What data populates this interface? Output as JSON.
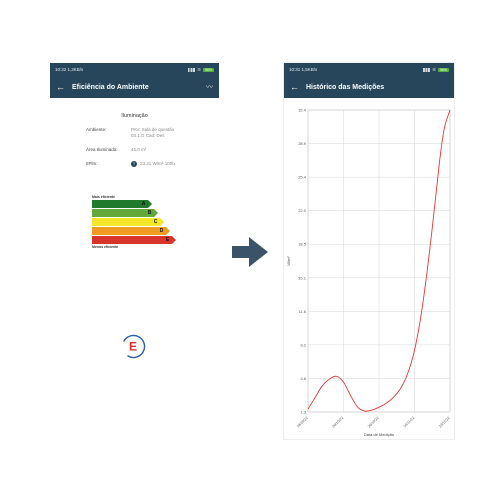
{
  "left_screen": {
    "status": {
      "time": "10:32",
      "left_extra": "1,3KB/s",
      "battery": "96%"
    },
    "appbar": {
      "title": "Eficiência do Ambiente"
    },
    "section_title": "Iluminação",
    "fields": [
      {
        "label": "Ambiente:",
        "value": "PAV: Sala de questão 03.1.G Cad: Des"
      },
      {
        "label": "Área Iluminada:",
        "value": "45.0 m²"
      },
      {
        "label": "IIPlm:",
        "value": "23.31 W/m²·100lx"
      }
    ],
    "efficiency": {
      "top_caption": "Mais eficiente",
      "bottom_caption": "Menos eficiente",
      "levels": [
        {
          "letter": "A",
          "color": "#1f7a2d"
        },
        {
          "letter": "B",
          "color": "#62a83a"
        },
        {
          "letter": "C",
          "color": "#f5e62a"
        },
        {
          "letter": "D",
          "color": "#f09a22"
        },
        {
          "letter": "E",
          "color": "#d9342b"
        }
      ]
    },
    "grade": {
      "letter": "E",
      "color": "#d9342b",
      "ring_color": "#2a5ea8"
    }
  },
  "right_screen": {
    "status": {
      "time": "10:31",
      "left_extra": "1,5KB/s",
      "battery": "96%"
    },
    "appbar": {
      "title": "Histórico das Medições"
    },
    "chart_data": {
      "type": "line",
      "xlabel": "Data de Medição",
      "ylabel": "W/m²",
      "ylim": [
        1.1,
        32.4
      ],
      "yticks": [
        "32.4",
        "28.9",
        "25.4",
        "22.0",
        "18.5",
        "15.1",
        "11.6",
        "8.2",
        "4.8",
        "1.3"
      ],
      "xticks": [
        "19/10/22",
        "20/10/22",
        "20/10/22",
        "16/11/22",
        "23/11/22"
      ],
      "series": [
        {
          "color": "#e53935",
          "x": [
            0,
            0.05,
            0.1,
            0.15,
            0.2,
            0.25,
            0.3,
            0.35,
            0.4,
            0.45,
            0.5,
            0.55,
            0.6,
            0.65,
            0.7,
            0.75,
            0.8,
            0.85,
            0.9,
            0.93,
            0.96,
            1.0
          ],
          "y": [
            1.4,
            2.6,
            3.8,
            4.5,
            4.8,
            4.2,
            2.8,
            1.6,
            1.2,
            1.3,
            1.6,
            2.0,
            2.6,
            3.5,
            5.0,
            7.5,
            11.5,
            17.0,
            23.5,
            27.5,
            30.5,
            32.4
          ]
        }
      ]
    }
  }
}
